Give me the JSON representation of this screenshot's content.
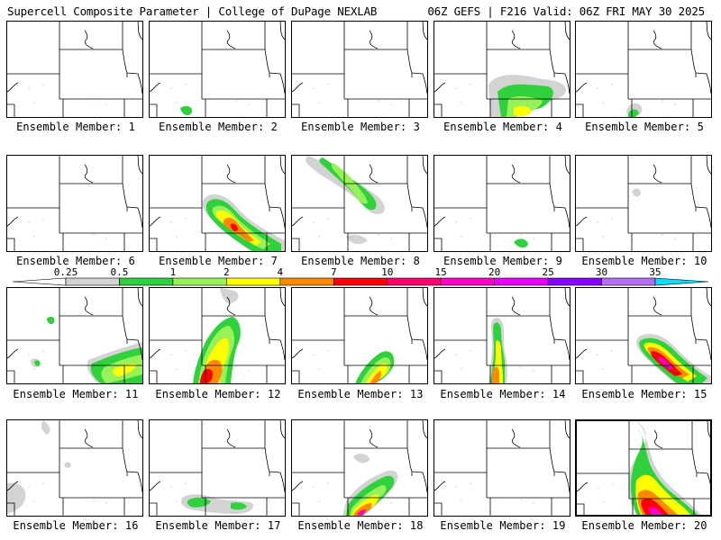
{
  "header": {
    "left": "Supercell Composite Parameter | College of DuPage NEXLAB",
    "right": "06Z GEFS | F216 Valid: 06Z FRI MAY 30 2025"
  },
  "member_label_prefix": "Ensemble Member:",
  "members": [
    "1",
    "2",
    "3",
    "4",
    "5",
    "6",
    "7",
    "8",
    "9",
    "10",
    "11",
    "12",
    "13",
    "14",
    "15",
    "16",
    "17",
    "18",
    "19",
    "20"
  ],
  "colorbar": {
    "levels": [
      "0.25",
      "0.5",
      "1",
      "2",
      "4",
      "7",
      "10",
      "15",
      "20",
      "25",
      "30",
      "35"
    ],
    "colors": [
      "#d3d3d3",
      "#2fd13c",
      "#97f25a",
      "#ffff00",
      "#ff8a00",
      "#ff0000",
      "#ff006f",
      "#ff00c8",
      "#e800ff",
      "#8a00ff",
      "#b56ef5",
      "#00e0ff"
    ]
  }
}
